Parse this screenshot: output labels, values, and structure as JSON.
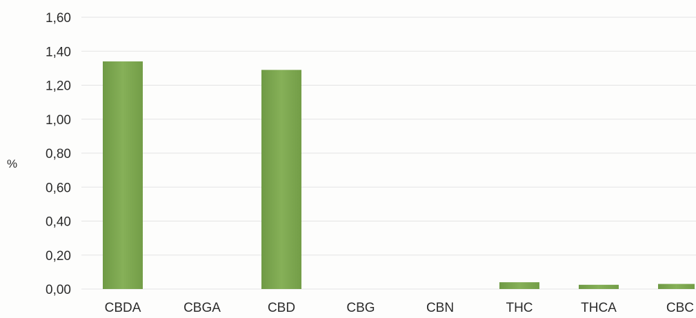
{
  "chart_data": {
    "type": "bar",
    "title": "",
    "xlabel": "",
    "ylabel": "%",
    "categories": [
      "CBDA",
      "CBGA",
      "CBD",
      "CBG",
      "CBN",
      "THC",
      "THCA",
      "CBC"
    ],
    "values": [
      1.34,
      0.0,
      1.29,
      0.0,
      0.0,
      0.04,
      0.025,
      0.03
    ],
    "ylim": [
      0,
      1.6
    ],
    "yticks": [
      "0,00",
      "0,20",
      "0,40",
      "0,60",
      "0,80",
      "1,00",
      "1,20",
      "1,40",
      "1,60"
    ],
    "grid": true,
    "legend": "none",
    "bar_color": "#7fa94e"
  }
}
